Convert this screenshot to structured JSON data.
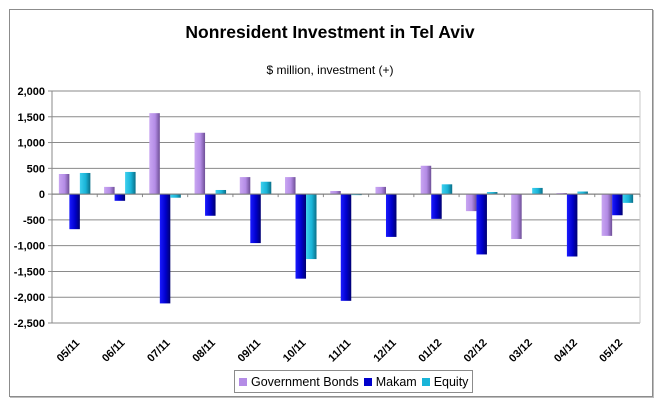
{
  "chart_data": {
    "type": "bar",
    "title": "Nonresident Investment in Tel Aviv",
    "subtitle": "$ million, investment (+)",
    "xlabel": "",
    "ylabel": "",
    "ylim": [
      -2500,
      2000
    ],
    "yticks": [
      2000,
      1500,
      1000,
      500,
      0,
      -500,
      -1000,
      -1500,
      -2000,
      -2500
    ],
    "ytick_labels": [
      "2,000",
      "1,500",
      "1,000",
      "500",
      "0",
      "-500",
      "-1,000",
      "-1,500",
      "-2,000",
      "-2,500"
    ],
    "grid": true,
    "legend_position": "bottom",
    "categories": [
      "05/11",
      "06/11",
      "07/11",
      "08/11",
      "09/11",
      "10/11",
      "11/11",
      "12/11",
      "01/12",
      "02/12",
      "03/12",
      "04/12",
      "05/12"
    ],
    "series": [
      {
        "name": "Government Bonds",
        "color": "#b48ce6",
        "values": [
          390,
          140,
          1570,
          1190,
          330,
          330,
          60,
          140,
          550,
          -330,
          -870,
          20,
          -810
        ]
      },
      {
        "name": "Makam",
        "color": "#0000cc",
        "values": [
          -680,
          -130,
          -2120,
          -420,
          -950,
          -1640,
          -2070,
          -830,
          -480,
          -1170,
          0,
          -1210,
          -410
        ]
      },
      {
        "name": "Equity",
        "color": "#19b4d8",
        "values": [
          410,
          430,
          -70,
          80,
          240,
          -1260,
          -10,
          0,
          190,
          40,
          120,
          50,
          -170
        ]
      }
    ]
  }
}
